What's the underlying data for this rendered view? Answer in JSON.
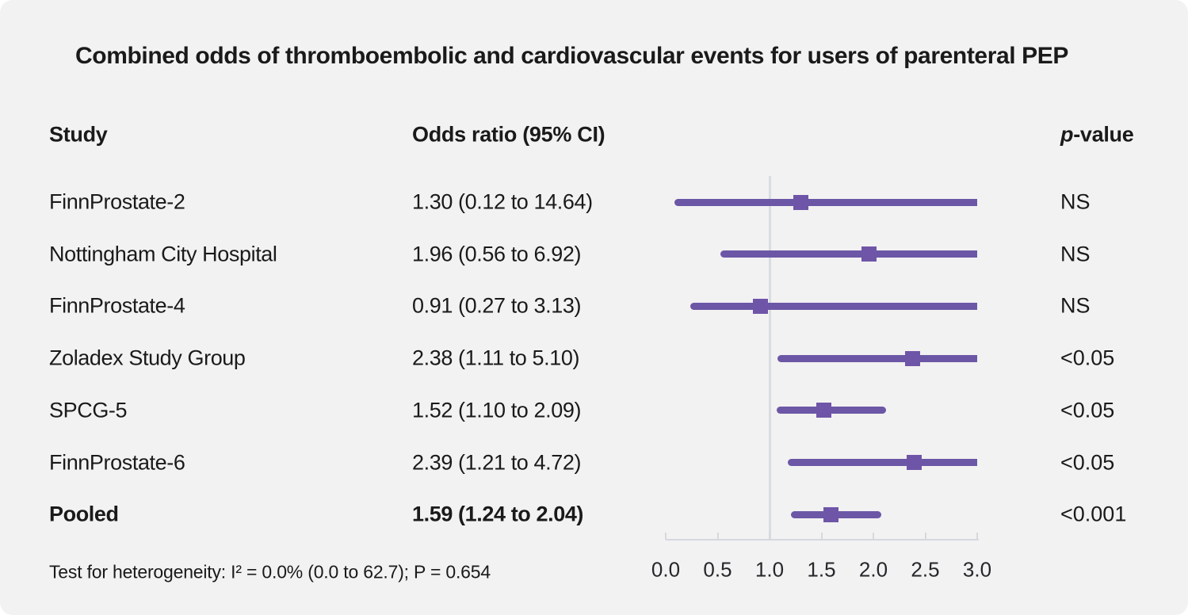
{
  "title": "Combined odds of thromboembolic and cardiovascular events for users of parenteral PEP",
  "columns": {
    "study": "Study",
    "odds_ratio": "Odds ratio (95% CI)",
    "p_value_italic": "p",
    "p_value_rest": "-value"
  },
  "footer": {
    "heterogeneity": "Test for heterogeneity: I² = 0.0% (0.0 to 62.7); P = 0.654"
  },
  "colors": {
    "background": "#f2f2f2",
    "text": "#1a1a1a",
    "ci_line": "#6c57a6",
    "marker": "#6f55a8",
    "axis_line": "#d5d9de",
    "reference_line": "#d9dde2"
  },
  "chart_data": {
    "type": "forest",
    "title": "Combined odds of thromboembolic and cardiovascular events for users of parenteral PEP",
    "x_axis": {
      "min": 0.0,
      "max": 3.0,
      "tick_labels": [
        "0.0",
        "0.5",
        "1.0",
        "1.5",
        "2.0",
        "2.5",
        "3.0"
      ],
      "tick_values": [
        0.0,
        0.5,
        1.0,
        1.5,
        2.0,
        2.5,
        3.0
      ]
    },
    "reference_value": 1.0,
    "rows": [
      {
        "study": "FinnProstate-2",
        "or": 1.3,
        "ci_low": 0.12,
        "ci_high": 14.64,
        "or_ci": "1.30 (0.12 to 14.64)",
        "p": "NS",
        "bold": false
      },
      {
        "study": "Nottingham City Hospital",
        "or": 1.96,
        "ci_low": 0.56,
        "ci_high": 6.92,
        "or_ci": "1.96 (0.56 to 6.92)",
        "p": "NS",
        "bold": false
      },
      {
        "study": "FinnProstate-4",
        "or": 0.91,
        "ci_low": 0.27,
        "ci_high": 3.13,
        "or_ci": "0.91 (0.27 to 3.13)",
        "p": "NS",
        "bold": false
      },
      {
        "study": "Zoladex Study Group",
        "or": 2.38,
        "ci_low": 1.11,
        "ci_high": 5.1,
        "or_ci": "2.38 (1.11 to 5.10)",
        "p": "<0.05",
        "bold": false
      },
      {
        "study": "SPCG-5",
        "or": 1.52,
        "ci_low": 1.1,
        "ci_high": 2.09,
        "or_ci": "1.52 (1.10 to 2.09)",
        "p": "<0.05",
        "bold": false
      },
      {
        "study": "FinnProstate-6",
        "or": 2.39,
        "ci_low": 1.21,
        "ci_high": 4.72,
        "or_ci": "2.39 (1.21 to 4.72)",
        "p": "<0.05",
        "bold": false
      },
      {
        "study": "Pooled",
        "or": 1.59,
        "ci_low": 1.24,
        "ci_high": 2.04,
        "or_ci": "1.59 (1.24 to 2.04)",
        "p": "<0.001",
        "bold": true
      }
    ]
  }
}
